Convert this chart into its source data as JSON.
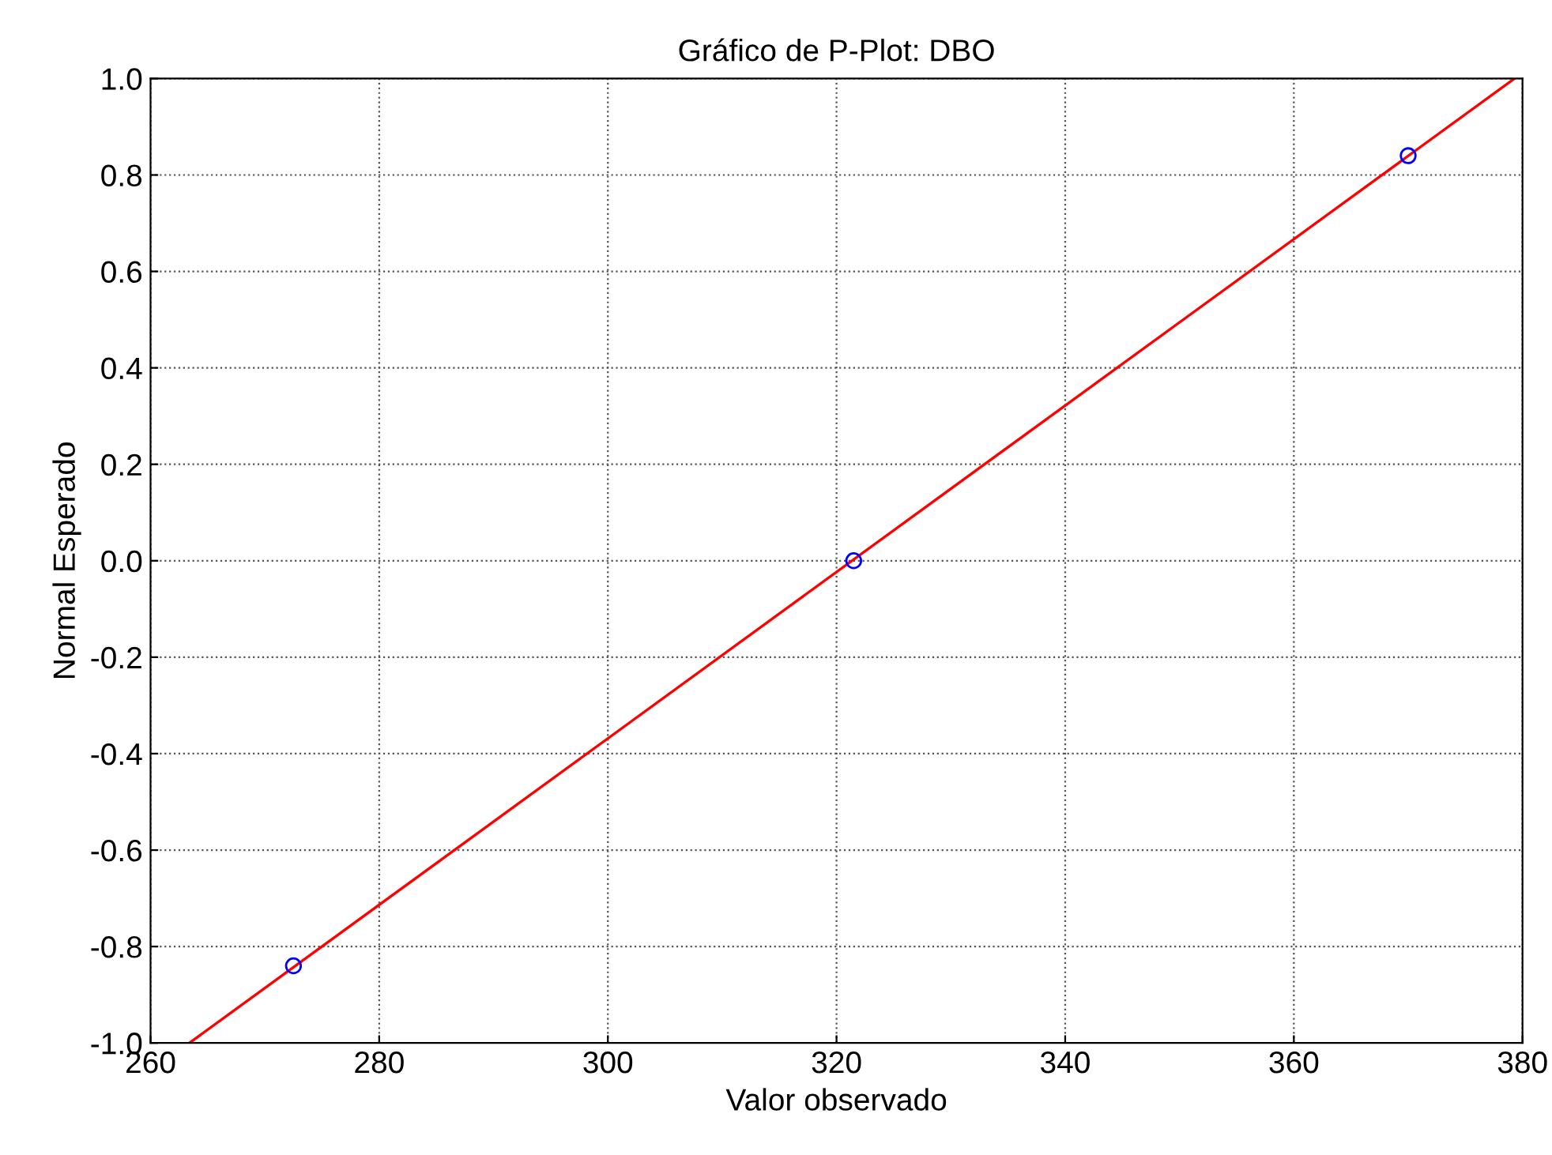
{
  "chart_data": {
    "type": "scatter",
    "title": "Gráfico de P-Plot: DBO",
    "xlabel": "Valor observado",
    "ylabel": "Normal Esperado",
    "xlim": [
      260,
      380
    ],
    "xticks": [
      260,
      280,
      300,
      320,
      340,
      360,
      380
    ],
    "ylim": [
      -1.0,
      1.0
    ],
    "yticks": [
      {
        "value": -1.0,
        "label": "-1.0"
      },
      {
        "value": -0.8,
        "label": "-0.8"
      },
      {
        "value": -0.6,
        "label": "-0.6"
      },
      {
        "value": -0.4,
        "label": "-0.4"
      },
      {
        "value": -0.2,
        "label": "-0.2"
      },
      {
        "value": 0.0,
        "label": "0.0"
      },
      {
        "value": 0.2,
        "label": "0.2"
      },
      {
        "value": 0.4,
        "label": "0.4"
      },
      {
        "value": 0.6,
        "label": "0.6"
      },
      {
        "value": 0.8,
        "label": "0.8"
      },
      {
        "value": 1.0,
        "label": "1.0"
      }
    ],
    "grid": true,
    "series": [
      {
        "color": "#0000ff",
        "marker": "circle",
        "x": [
          272.5,
          321.5,
          370.0
        ],
        "values": [
          -0.84,
          0.0,
          0.84
        ]
      },
      {
        "type": "line",
        "color": "#ff0000",
        "marker": "none",
        "line_style": "solid",
        "x": [
          263.4,
          379.3
        ],
        "values": [
          -1.0,
          1.0
        ]
      }
    ]
  }
}
